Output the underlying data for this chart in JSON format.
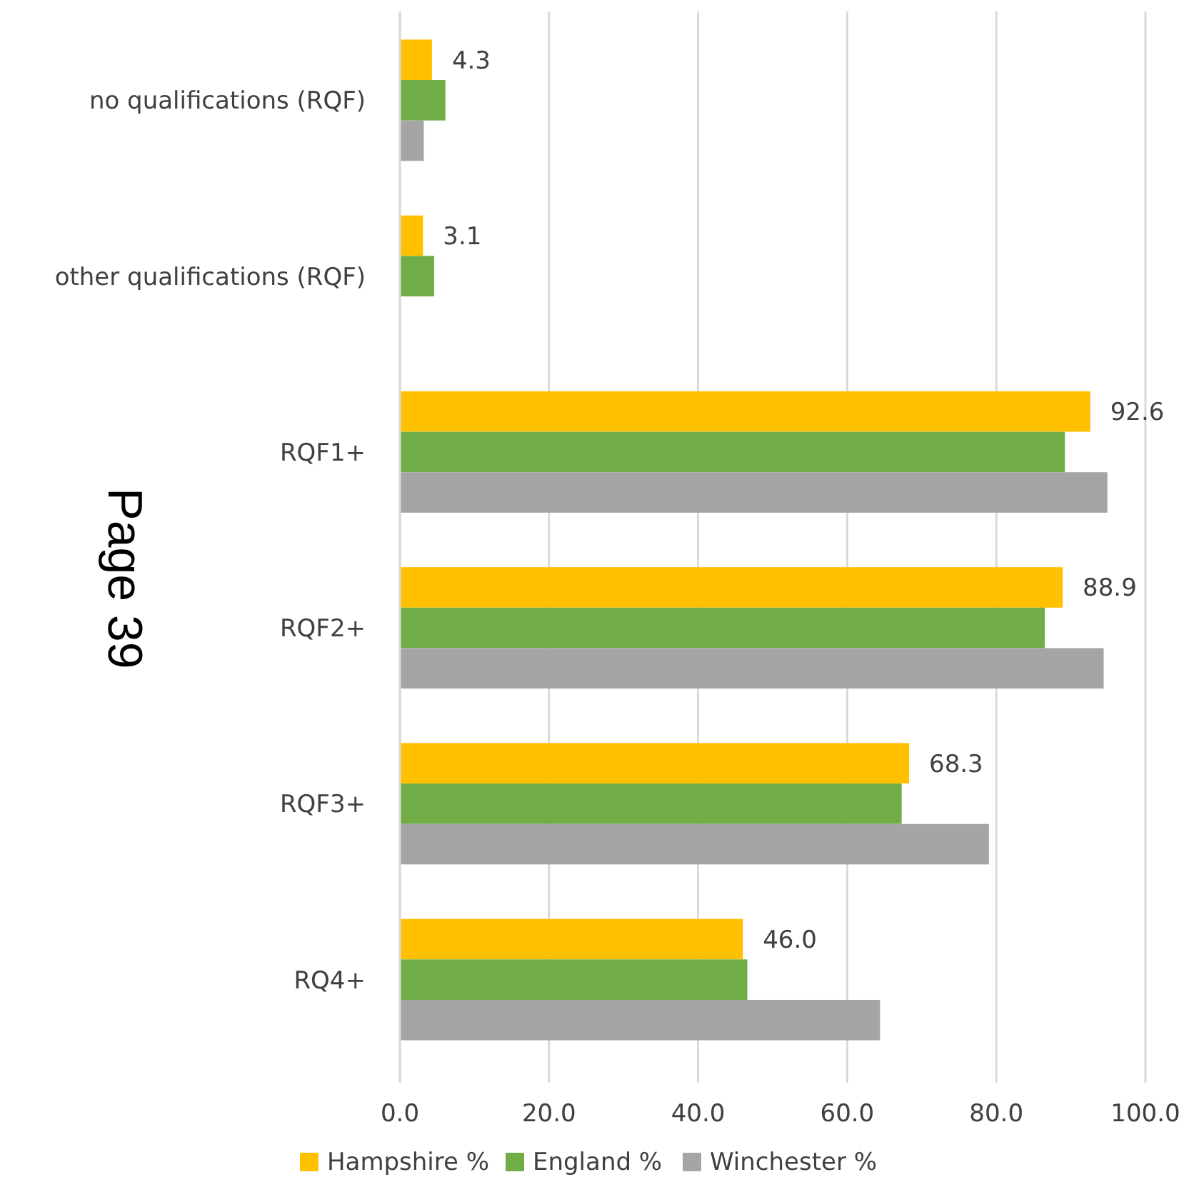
{
  "chart_data": {
    "type": "bar",
    "orientation": "horizontal",
    "categories": [
      "no qualifications (RQF)",
      "other qualifications (RQF)",
      "RQF1+",
      "RQF2+",
      "RQF3+",
      "RQ4+"
    ],
    "series": [
      {
        "name": "Hampshire %",
        "color": "#ffc000",
        "values": [
          4.3,
          3.1,
          92.6,
          88.9,
          68.3,
          46.0
        ],
        "value_labels": [
          "4.3",
          "3.1",
          "92.6",
          "88.9",
          "68.3",
          "46.0"
        ]
      },
      {
        "name": "England %",
        "color": "#70ad47",
        "values": [
          6.1,
          4.6,
          89.2,
          86.5,
          67.3,
          46.6
        ]
      },
      {
        "name": "Winchester %",
        "color": "#a5a5a5",
        "values": [
          3.2,
          null,
          94.9,
          94.4,
          79.0,
          64.4
        ]
      }
    ],
    "xlim": [
      0,
      100
    ],
    "xticks": [
      {
        "value": 0,
        "label": "0.0"
      },
      {
        "value": 20,
        "label": "20.0"
      },
      {
        "value": 40,
        "label": "40.0"
      },
      {
        "value": 60,
        "label": "60.0"
      },
      {
        "value": 80,
        "label": "80.0"
      },
      {
        "value": 100,
        "label": "100.0"
      }
    ],
    "grid": "x",
    "legend": "bottom",
    "annotations": [
      "Page 39"
    ]
  }
}
